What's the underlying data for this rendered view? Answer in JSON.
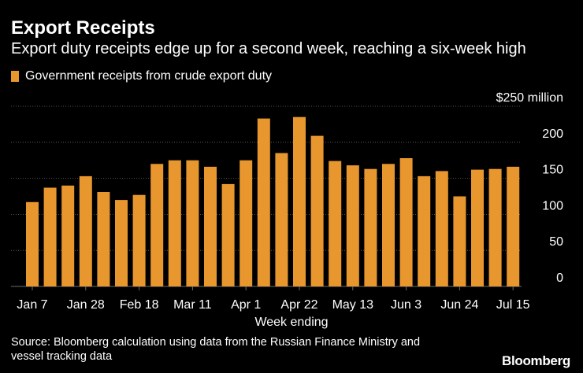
{
  "title": "Export Receipts",
  "subtitle": "Export duty receipts edge up for a second week, reaching a six-week high",
  "legend_label": "Government receipts from crude export duty",
  "source_line1": "Source: Bloomberg calculation using data from the Russian Finance Ministry and",
  "source_line2": "vessel tracking data",
  "brand": "Bloomberg",
  "colors": {
    "bar": "#e8962e",
    "grid": "#6b6b6b",
    "background": "#000000",
    "text": "#ffffff"
  },
  "chart_data": {
    "type": "bar",
    "xlabel": "Week ending",
    "ylabel": "",
    "y_top_label": "$250 million",
    "ylim": [
      0,
      250
    ],
    "yticks": [
      0,
      50,
      100,
      150,
      200,
      250
    ],
    "grid": true,
    "legend_position": "top-left",
    "xtick_labels": [
      {
        "index": 0,
        "label": "Jan 7"
      },
      {
        "index": 3,
        "label": "Jan 28"
      },
      {
        "index": 6,
        "label": "Feb 18"
      },
      {
        "index": 9,
        "label": "Mar 11"
      },
      {
        "index": 12,
        "label": "Apr 1"
      },
      {
        "index": 15,
        "label": "Apr 22"
      },
      {
        "index": 18,
        "label": "May 13"
      },
      {
        "index": 21,
        "label": "Jun 3"
      },
      {
        "index": 24,
        "label": "Jun 24"
      },
      {
        "index": 27,
        "label": "Jul 15"
      }
    ],
    "series": [
      {
        "name": "Government receipts from crude export duty",
        "values": [
          117,
          137,
          140,
          153,
          131,
          120,
          127,
          170,
          175,
          175,
          166,
          142,
          175,
          233,
          185,
          235,
          209,
          174,
          168,
          163,
          170,
          178,
          153,
          160,
          125,
          162,
          163,
          166
        ]
      }
    ]
  }
}
